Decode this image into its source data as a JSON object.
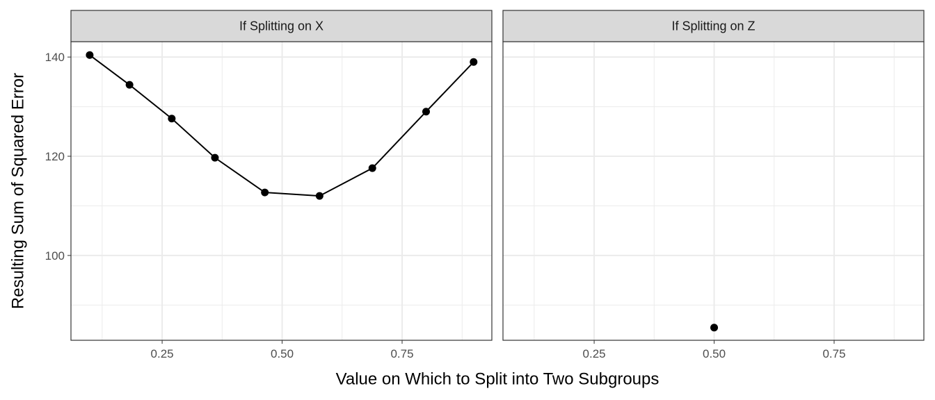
{
  "xlabel": "Value on Which to Split into Two Subgroups",
  "ylabel": "Resulting Sum of Squared Error",
  "chart_data": [
    {
      "type": "line",
      "title": "If Splitting on X",
      "color": "#000000",
      "grid": true,
      "x": [
        0.099,
        0.182,
        0.27,
        0.36,
        0.464,
        0.578,
        0.688,
        0.8,
        0.899
      ],
      "values": [
        140.4,
        134.4,
        127.6,
        119.7,
        112.7,
        112.0,
        117.6,
        129.0,
        139.0
      ],
      "xlim": [
        0.06,
        0.937
      ],
      "ylim": [
        82.9,
        143.1
      ],
      "xticks": [
        0.25,
        {
          "value": 0.5,
          "label": "0.50"
        },
        0.75
      ],
      "yticks": [
        100,
        120,
        140
      ],
      "x_minor_ticks": [
        0.125,
        0.375,
        0.625,
        0.875
      ],
      "y_minor_ticks": [
        90,
        110,
        130
      ]
    },
    {
      "type": "line",
      "title": "If Splitting on Z",
      "color": "#000000",
      "grid": true,
      "x": [
        0.5
      ],
      "values": [
        85.45
      ],
      "xlim": [
        0.06,
        0.937
      ],
      "ylim": [
        82.9,
        143.1
      ],
      "xticks": [
        0.25,
        {
          "value": 0.5,
          "label": "0.50"
        },
        0.75
      ],
      "yticks": [
        100,
        120,
        140
      ],
      "x_minor_ticks": [
        0.125,
        0.375,
        0.625,
        0.875
      ],
      "y_minor_ticks": [
        90,
        110,
        130
      ]
    }
  ]
}
